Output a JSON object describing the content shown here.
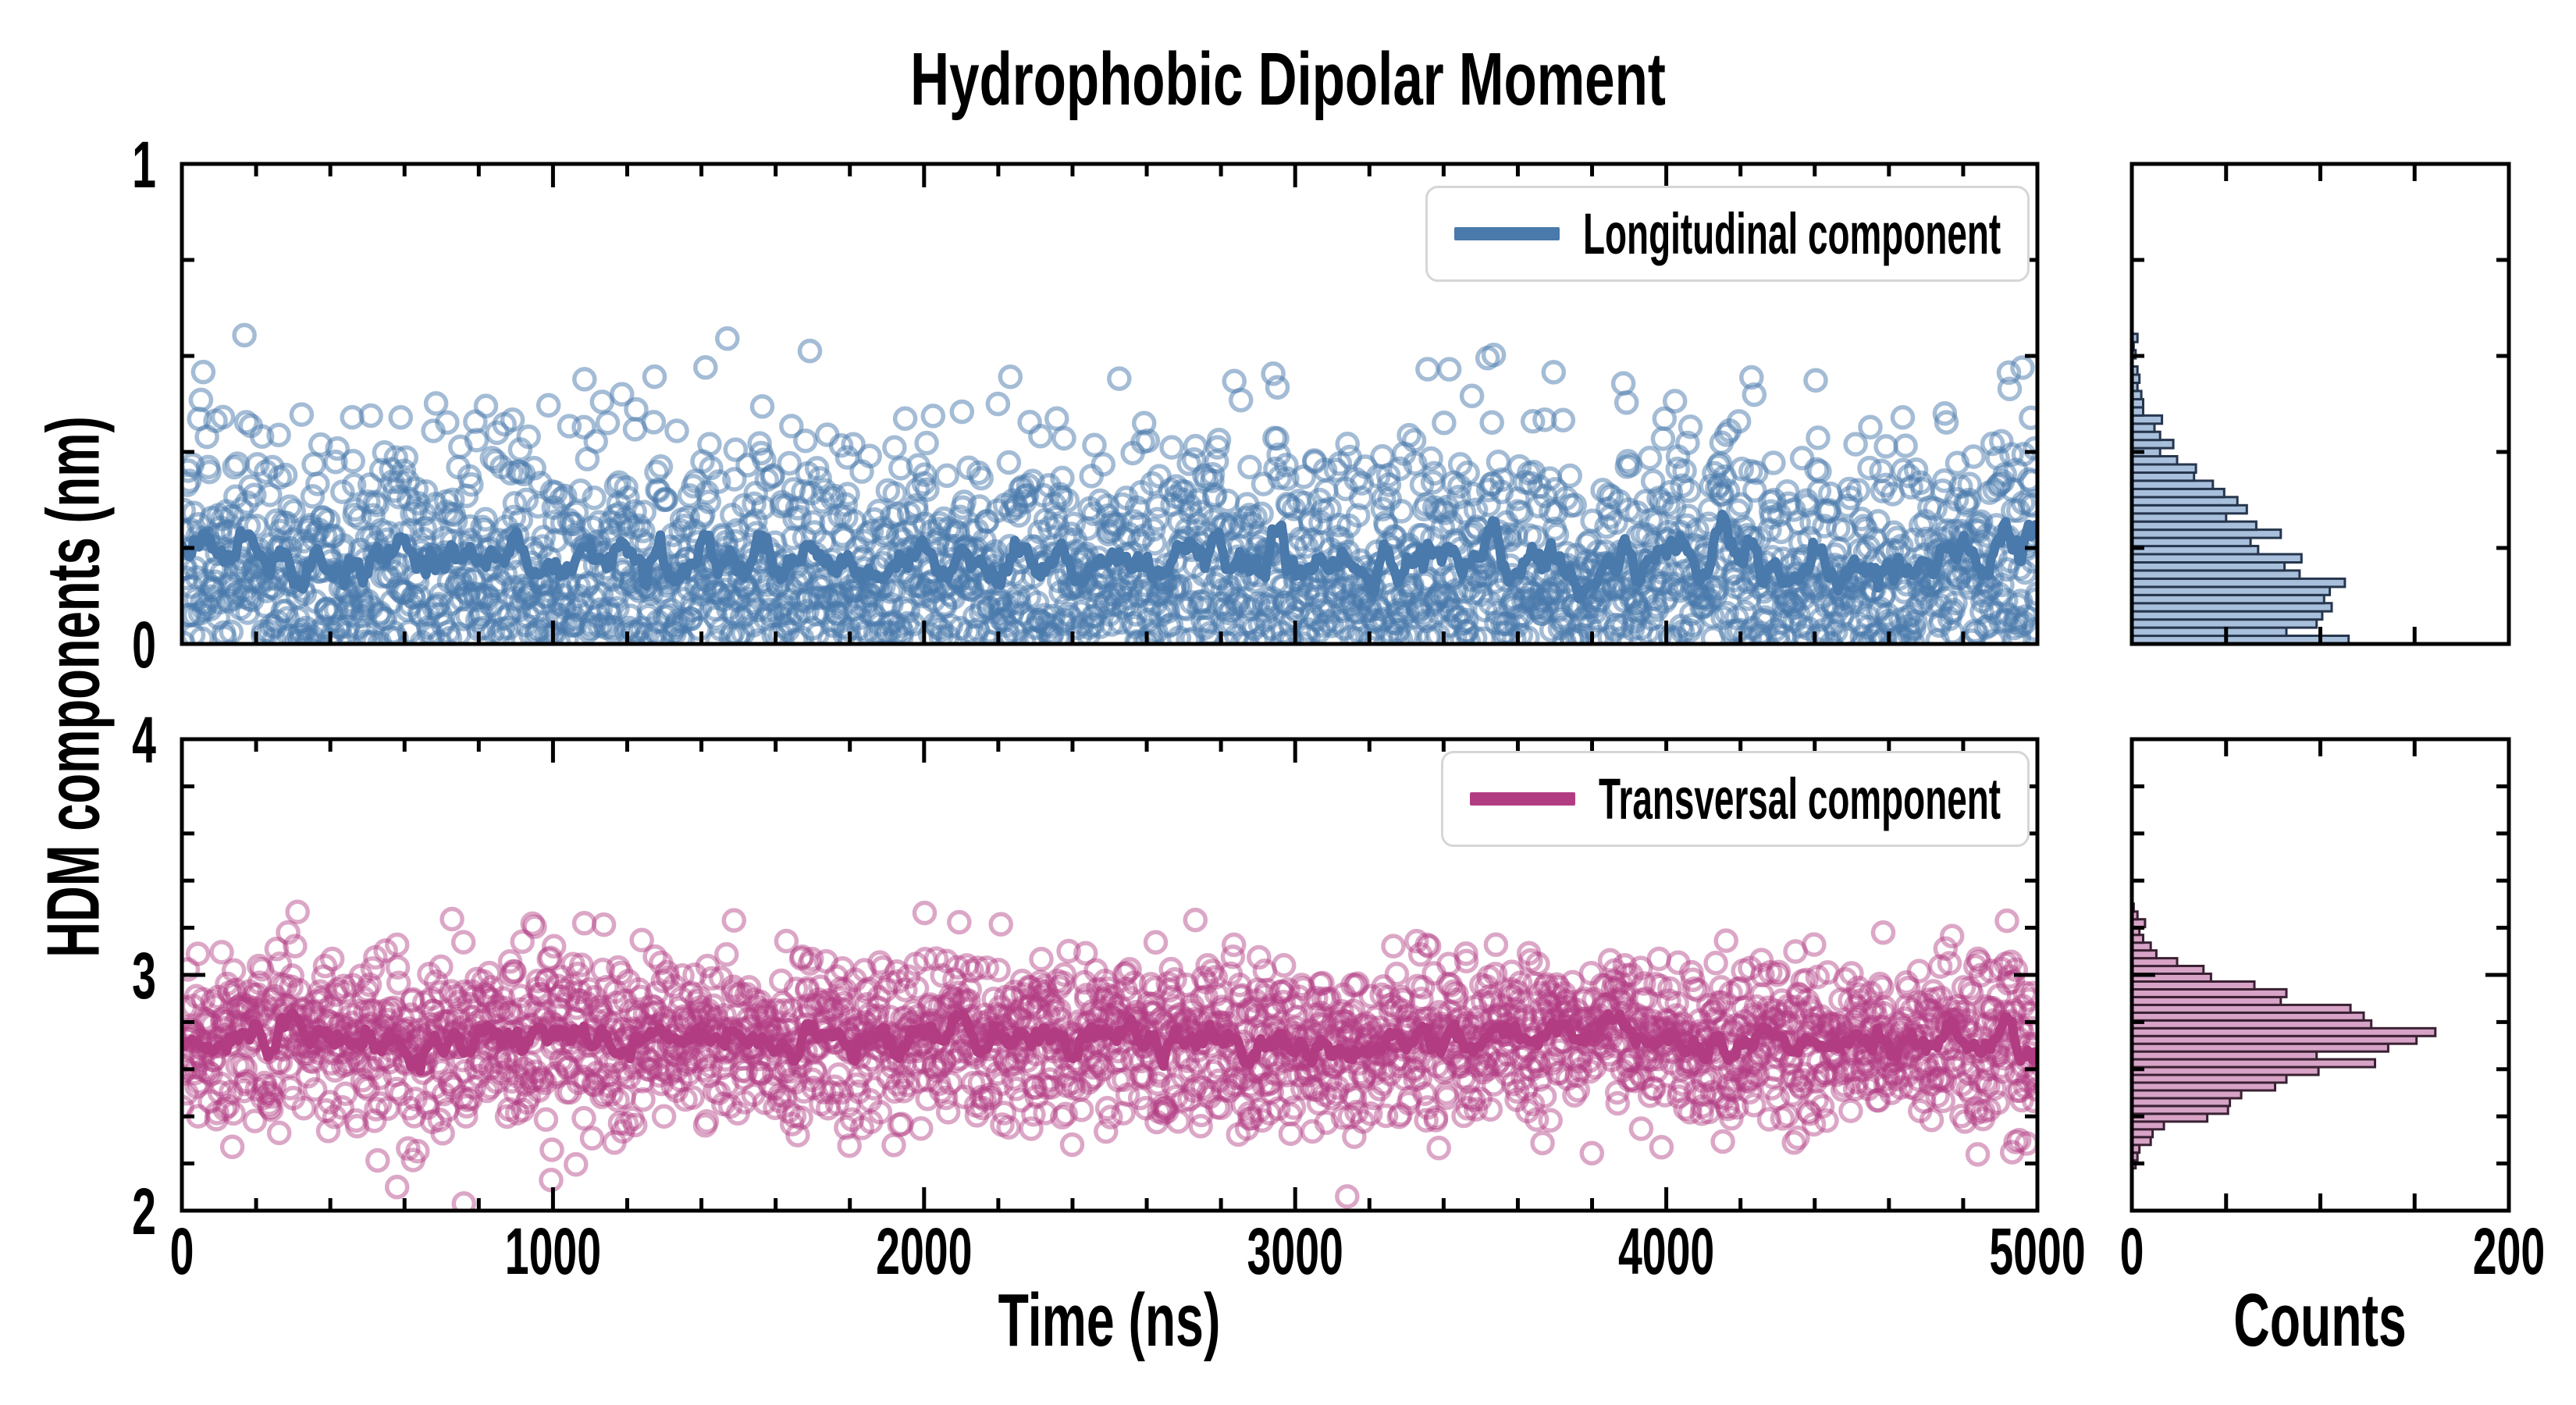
{
  "title": "Hydrophobic Dipolar Moment",
  "axes": {
    "x_label": "Time (ns)",
    "y_label": "HDM components (nm)",
    "counts_label": "Counts",
    "time_range_ns": [
      0,
      5000
    ],
    "time_ticks": [
      0,
      1000,
      2000,
      3000,
      4000,
      5000
    ],
    "time_minor_step_ns": 200,
    "counts_range": [
      0,
      200
    ],
    "counts_ticks": [
      0,
      50,
      100,
      150,
      200
    ],
    "counts_labeled_ticks": [
      0,
      200
    ]
  },
  "chart_data": [
    {
      "name": "Longitudinal component",
      "type": "scatter",
      "marker": "open-circle",
      "n_points": 2400,
      "ylim_nm": [
        0,
        1
      ],
      "y_major_ticks": [
        0,
        1
      ],
      "y_minor_step": 0.2,
      "running_mean_nm": 0.18,
      "colors": {
        "line": "#4a79ab",
        "marker": "#4a79ab",
        "marker_opacity": 0.5,
        "hist_fill": "#a9c0dc",
        "hist_edge": "#26364d"
      },
      "histogram_bins": {
        "start_nm": 0.0,
        "width_nm": 0.017,
        "counts": [
          115,
          82,
          98,
          101,
          106,
          102,
          105,
          113,
          89,
          81,
          90,
          67,
          63,
          79,
          66,
          50,
          61,
          56,
          49,
          43,
          33,
          34,
          24,
          15,
          22,
          15,
          12,
          16,
          6,
          6,
          5,
          3,
          4,
          3,
          0,
          2,
          1,
          3
        ]
      },
      "outliers": []
    },
    {
      "name": "Transversal component",
      "type": "scatter",
      "marker": "open-circle",
      "n_points": 2400,
      "ylim_nm": [
        2,
        4
      ],
      "y_major_ticks": [
        2,
        3,
        4
      ],
      "y_minor_step": 0.2,
      "running_mean_nm": 2.73,
      "colors": {
        "line": "#b23c82",
        "marker": "#b23c82",
        "marker_opacity": 0.45,
        "hist_fill": "#d7a3c6",
        "hist_edge": "#3a2133"
      },
      "histogram_bins": {
        "start_nm": 2.18,
        "width_nm": 0.033,
        "counts": [
          2,
          3,
          4,
          10,
          11,
          17,
          40,
          51,
          52,
          58,
          76,
          82,
          99,
          129,
          98,
          136,
          151,
          161,
          127,
          123,
          116,
          79,
          82,
          65,
          42,
          38,
          24,
          13,
          10,
          6,
          4,
          7,
          3,
          1
        ]
      },
      "outliers": [
        [
          580,
          2.1
        ],
        [
          760,
          2.03
        ],
        [
          995,
          2.13
        ],
        [
          3140,
          2.06
        ]
      ]
    }
  ]
}
